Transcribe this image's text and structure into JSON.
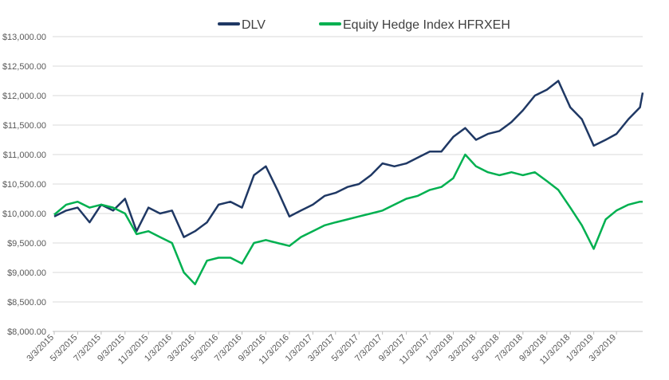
{
  "chart_data": {
    "type": "line",
    "title": "",
    "xlabel": "",
    "ylabel": "",
    "ylim": [
      8000,
      13000
    ],
    "y_tick_values": [
      8000,
      8500,
      9000,
      9500,
      10000,
      10500,
      11000,
      11500,
      12000,
      12500,
      13000
    ],
    "y_tick_labels": [
      "$8,000.00",
      "$8,500.00",
      "$9,000.00",
      "$9,500.00",
      "$10,000.00",
      "$10,500.00",
      "$11,000.00",
      "$11,500.00",
      "$12,000.00",
      "$12,500.00",
      "$13,000.00"
    ],
    "x_tick_labels": [
      "3/3/2015",
      "5/3/2015",
      "7/3/2015",
      "9/3/2015",
      "11/3/2015",
      "1/3/2016",
      "3/3/2016",
      "5/3/2016",
      "7/3/2016",
      "9/3/2016",
      "11/3/2016",
      "1/3/2017",
      "3/3/2017",
      "5/3/2017",
      "7/3/2017",
      "9/3/2017",
      "11/3/2017",
      "1/3/2018",
      "3/3/2018",
      "5/3/2018",
      "7/3/2018",
      "9/3/2018",
      "11/3/2018",
      "1/3/2019",
      "3/3/2019"
    ],
    "legend_position": "top",
    "grid": true,
    "series": [
      {
        "name": "DLV",
        "color": "#1f3864",
        "x": [
          "3/3/2015",
          "4/3/2015",
          "5/3/2015",
          "6/3/2015",
          "7/3/2015",
          "8/3/2015",
          "9/3/2015",
          "10/3/2015",
          "11/3/2015",
          "12/3/2015",
          "1/3/2016",
          "2/3/2016",
          "3/3/2016",
          "4/3/2016",
          "5/3/2016",
          "6/3/2016",
          "7/3/2016",
          "8/3/2016",
          "9/3/2016",
          "10/3/2016",
          "11/3/2016",
          "12/3/2016",
          "1/3/2017",
          "2/3/2017",
          "3/3/2017",
          "4/3/2017",
          "5/3/2017",
          "6/3/2017",
          "7/3/2017",
          "8/3/2017",
          "9/3/2017",
          "10/3/2017",
          "11/3/2017",
          "12/3/2017",
          "1/3/2018",
          "2/3/2018",
          "3/3/2018",
          "4/3/2018",
          "5/3/2018",
          "6/3/2018",
          "7/3/2018",
          "8/3/2018",
          "9/3/2018",
          "10/3/2018",
          "11/3/2018",
          "12/3/2018",
          "1/3/2019",
          "2/3/2019",
          "3/3/2019",
          "4/3/2019",
          "5/3/2019",
          "5/20/2019"
        ],
        "values": [
          9950,
          10050,
          10100,
          9850,
          10150,
          10050,
          10250,
          9700,
          10100,
          10000,
          10050,
          9600,
          9700,
          9850,
          10150,
          10200,
          10100,
          10650,
          10800,
          10400,
          9950,
          10050,
          10150,
          10300,
          10350,
          10450,
          10500,
          10650,
          10850,
          10800,
          10850,
          10950,
          11050,
          11050,
          11300,
          11450,
          11250,
          11350,
          11400,
          11550,
          11750,
          12000,
          12100,
          12250,
          11800,
          11600,
          11150,
          11250,
          11350,
          11600,
          11800,
          12050
        ]
      },
      {
        "name": "Equity Hedge Index HFRXEH",
        "color": "#00b050",
        "x": [
          "3/3/2015",
          "4/3/2015",
          "5/3/2015",
          "6/3/2015",
          "7/3/2015",
          "8/3/2015",
          "9/3/2015",
          "10/3/2015",
          "11/3/2015",
          "12/3/2015",
          "1/3/2016",
          "2/3/2016",
          "3/3/2016",
          "4/3/2016",
          "5/3/2016",
          "6/3/2016",
          "7/3/2016",
          "8/3/2016",
          "9/3/2016",
          "10/3/2016",
          "11/3/2016",
          "12/3/2016",
          "1/3/2017",
          "2/3/2017",
          "3/3/2017",
          "4/3/2017",
          "5/3/2017",
          "6/3/2017",
          "7/3/2017",
          "8/3/2017",
          "9/3/2017",
          "10/3/2017",
          "11/3/2017",
          "12/3/2017",
          "1/3/2018",
          "2/3/2018",
          "3/3/2018",
          "4/3/2018",
          "5/3/2018",
          "6/3/2018",
          "7/3/2018",
          "8/3/2018",
          "9/3/2018",
          "10/3/2018",
          "11/3/2018",
          "12/3/2018",
          "1/3/2019",
          "2/3/2019",
          "3/3/2019",
          "4/3/2019",
          "5/3/2019",
          "5/20/2019"
        ],
        "values": [
          9980,
          10150,
          10200,
          10100,
          10150,
          10100,
          10000,
          9650,
          9700,
          9600,
          9500,
          9000,
          8800,
          9200,
          9250,
          9250,
          9150,
          9500,
          9550,
          9500,
          9450,
          9600,
          9700,
          9800,
          9850,
          9900,
          9950,
          10000,
          10050,
          10150,
          10250,
          10300,
          10400,
          10450,
          10600,
          11000,
          10800,
          10700,
          10650,
          10700,
          10650,
          10700,
          10550,
          10400,
          10100,
          9800,
          9400,
          9900,
          10050,
          10150,
          10200,
          10200
        ]
      }
    ]
  }
}
